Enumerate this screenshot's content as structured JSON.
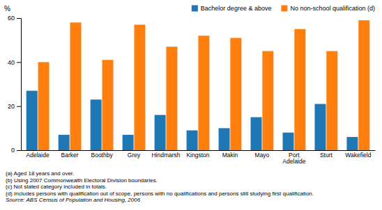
{
  "chart_data": {
    "type": "bar",
    "ylabel": "%",
    "categories": [
      "Adelaide",
      "Barker",
      "Boothby",
      "Grey",
      "Hindmarsh",
      "Kingston",
      "Makin",
      "Mayo",
      "Port\nAdelaide",
      "Sturt",
      "Wakefield"
    ],
    "series": [
      {
        "name": "Bachelor degree & above",
        "values": [
          27,
          7,
          23,
          7,
          16,
          9,
          10,
          15,
          8,
          21,
          6
        ]
      },
      {
        "name": "No non-school qualification (d)",
        "values": [
          40,
          58,
          41,
          57,
          47,
          52,
          51,
          45,
          55,
          45,
          59
        ]
      }
    ],
    "ylim": [
      0,
      60
    ],
    "yticks": [
      0,
      20,
      40,
      60
    ],
    "grid": false,
    "legend": "upper right",
    "annotations": [
      "(a) Aged 18 years and over.",
      "(b) Using 2007 Commonwealth Electoral Division boundaries.",
      "(c) Not stated category included in totals.",
      "(d) Includes persons with qualification out of scope, persons with no qualifications and persons still studying first qualification.",
      "Source: ABS Census of Population and Housing, 2006"
    ]
  }
}
